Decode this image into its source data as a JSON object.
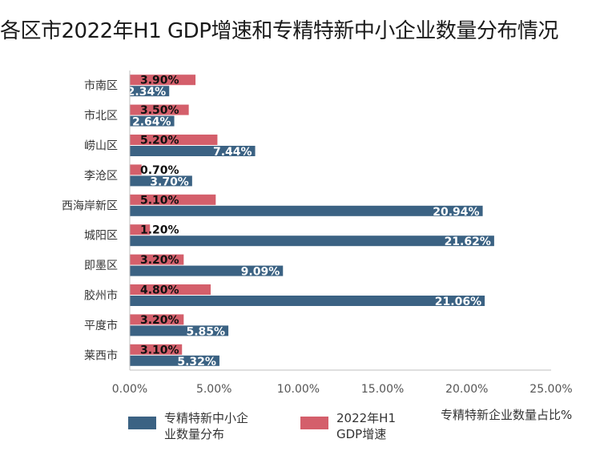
{
  "chart_data": {
    "type": "bar",
    "orientation": "horizontal",
    "title": "各区市2022年H1 GDP增速和专精特新中小企业数量分布情况",
    "xlabel": "专精特新企业数量占比%",
    "categories": [
      "市南区",
      "市北区",
      "崂山区",
      "李沧区",
      "西海岸新区",
      "城阳区",
      "即墨区",
      "胶州市",
      "平度市",
      "莱西市"
    ],
    "xlim": [
      0,
      25
    ],
    "x_ticks": [
      "0.00%",
      "5.00%",
      "10.00%",
      "15.00%",
      "20.00%",
      "25.00%"
    ],
    "grid": false,
    "legend_position": "bottom-left",
    "series": [
      {
        "name": "2022年H1\nGDP增速",
        "color": "#d45f6b",
        "values": [
          3.9,
          3.5,
          5.2,
          0.7,
          5.1,
          1.2,
          3.2,
          4.8,
          3.2,
          3.1
        ],
        "labels": [
          "3.90%",
          "3.50%",
          "5.20%",
          "0.70%",
          "5.10%",
          "1.20%",
          "3.20%",
          "4.80%",
          "3.20%",
          "3.10%"
        ]
      },
      {
        "name": "专精特新中小企\n业数量分布",
        "color": "#3b6283",
        "values": [
          2.34,
          2.64,
          7.44,
          3.7,
          20.94,
          21.62,
          9.09,
          21.06,
          5.85,
          5.32
        ],
        "labels": [
          "2.34%",
          "2.64%",
          "7.44%",
          "3.70%",
          "20.94%",
          "21.62%",
          "9.09%",
          "21.06%",
          "5.85%",
          "5.32%"
        ]
      }
    ]
  }
}
